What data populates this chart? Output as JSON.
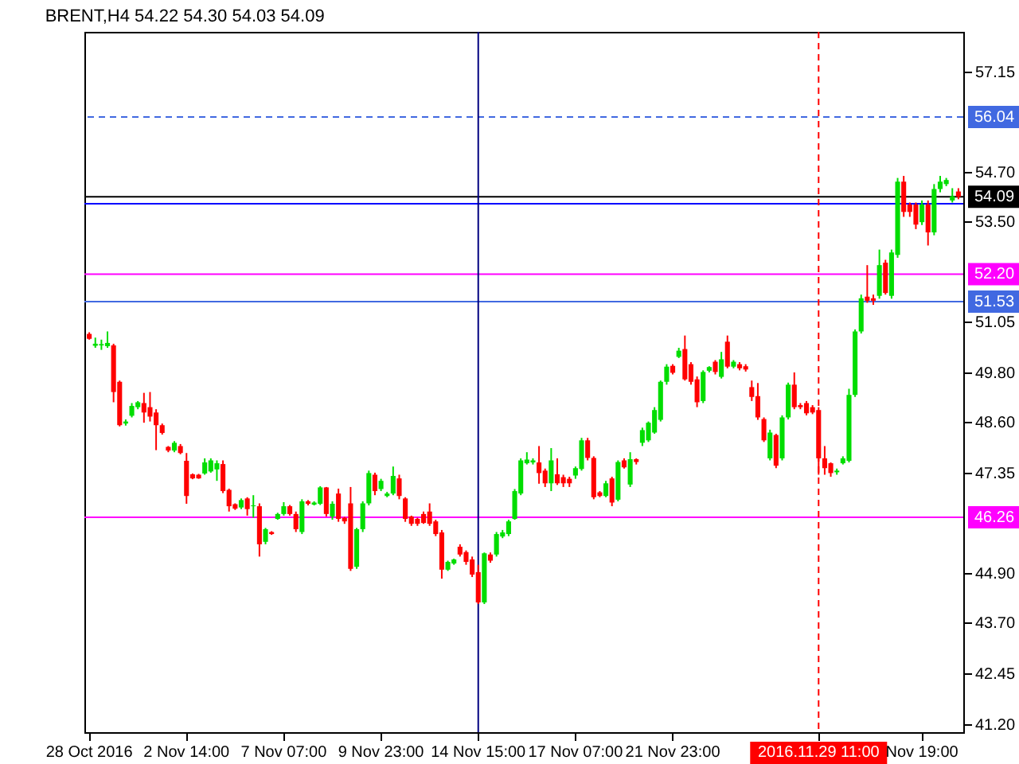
{
  "chart_data": {
    "type": "candlestick",
    "title": "BRENT,H4  54.22 54.30 54.03 54.09",
    "categories": [
      "28 Oct 2016",
      null,
      null,
      null,
      null,
      null,
      null,
      null,
      null,
      null,
      null,
      null,
      null,
      null,
      null,
      null,
      "2 Nov 14:00",
      null,
      null,
      null,
      null,
      null,
      null,
      null,
      null,
      null,
      null,
      null,
      null,
      null,
      null,
      null,
      "7 Nov 07:00",
      null,
      null,
      null,
      null,
      null,
      null,
      null,
      null,
      null,
      null,
      null,
      null,
      null,
      null,
      null,
      "9 Nov 23:00",
      null,
      null,
      null,
      null,
      null,
      null,
      null,
      null,
      null,
      null,
      null,
      null,
      null,
      null,
      null,
      "14 Nov 15:00",
      null,
      null,
      null,
      null,
      null,
      null,
      null,
      null,
      null,
      null,
      null,
      null,
      null,
      null,
      null,
      "17 Nov 07:00",
      null,
      null,
      null,
      null,
      null,
      null,
      null,
      null,
      null,
      null,
      null,
      null,
      null,
      null,
      null,
      "21 Nov 23:00",
      null,
      null,
      null,
      null,
      null,
      null,
      null,
      null,
      null,
      null,
      null,
      null,
      null,
      null,
      null,
      null,
      null,
      null,
      null,
      null,
      null,
      null,
      null,
      "2016.11.29 11:00",
      null,
      null,
      null,
      null,
      null,
      null,
      null,
      null,
      null,
      null,
      null,
      null,
      null,
      null,
      null,
      null,
      "Nov 19:00",
      null,
      null,
      null,
      null,
      null,
      null
    ],
    "ohlc": [
      [
        50.74,
        50.78,
        50.6,
        50.62
      ],
      [
        50.45,
        50.65,
        50.4,
        50.5
      ],
      [
        50.46,
        50.6,
        50.35,
        50.49
      ],
      [
        50.44,
        50.8,
        50.4,
        50.52
      ],
      [
        50.46,
        50.5,
        49.07,
        49.32
      ],
      [
        49.57,
        49.6,
        48.48,
        48.51
      ],
      [
        48.55,
        48.65,
        48.5,
        48.6
      ],
      [
        48.74,
        49.05,
        48.7,
        48.98
      ],
      [
        48.95,
        49.1,
        48.9,
        49.07
      ],
      [
        49.05,
        49.3,
        48.57,
        48.82
      ],
      [
        48.95,
        49.32,
        48.6,
        48.72
      ],
      [
        48.82,
        48.9,
        47.9,
        48.51
      ],
      [
        48.51,
        48.55,
        48.28,
        48.32
      ],
      [
        47.98,
        48.0,
        47.85,
        47.89
      ],
      [
        47.89,
        48.12,
        47.85,
        48.08
      ],
      [
        48.0,
        48.05,
        47.8,
        47.83
      ],
      [
        47.64,
        47.83,
        46.59,
        46.78
      ],
      [
        47.31,
        47.33,
        47.19,
        47.21
      ],
      [
        47.3,
        47.32,
        47.2,
        47.21
      ],
      [
        47.33,
        47.7,
        47.3,
        47.6
      ],
      [
        47.38,
        47.7,
        47.35,
        47.65
      ],
      [
        47.43,
        47.65,
        47.15,
        47.58
      ],
      [
        47.56,
        47.65,
        46.85,
        46.9
      ],
      [
        46.93,
        46.96,
        46.4,
        46.53
      ],
      [
        46.58,
        46.6,
        46.44,
        46.47
      ],
      [
        46.5,
        46.72,
        46.46,
        46.68
      ],
      [
        46.72,
        46.75,
        46.3,
        46.46
      ],
      [
        46.53,
        46.8,
        46.25,
        46.55
      ],
      [
        46.53,
        46.6,
        45.3,
        45.6
      ],
      [
        45.66,
        46.0,
        45.6,
        45.97
      ],
      [
        45.9,
        45.92,
        45.83,
        45.85
      ],
      [
        46.22,
        46.37,
        46.2,
        46.34
      ],
      [
        46.34,
        46.63,
        46.3,
        46.53
      ],
      [
        46.53,
        46.56,
        46.3,
        46.34
      ],
      [
        46.34,
        46.4,
        45.9,
        45.97
      ],
      [
        45.9,
        46.7,
        45.85,
        46.65
      ],
      [
        46.65,
        46.68,
        46.55,
        46.59
      ],
      [
        46.57,
        46.65,
        46.55,
        46.62
      ],
      [
        46.59,
        47.02,
        46.56,
        46.99
      ],
      [
        46.99,
        47.0,
        46.28,
        46.34
      ],
      [
        46.28,
        46.65,
        46.2,
        46.59
      ],
      [
        46.84,
        46.96,
        46.15,
        46.22
      ],
      [
        46.25,
        46.27,
        46.1,
        46.16
      ],
      [
        46.6,
        47.0,
        44.95,
        45.0
      ],
      [
        45.05,
        46.0,
        45.0,
        45.97
      ],
      [
        45.97,
        46.65,
        45.9,
        46.6
      ],
      [
        46.6,
        47.4,
        46.55,
        47.34
      ],
      [
        47.3,
        47.35,
        46.8,
        46.9
      ],
      [
        46.95,
        47.2,
        46.9,
        47.15
      ],
      [
        46.78,
        46.88,
        46.75,
        46.84
      ],
      [
        46.84,
        47.5,
        46.8,
        47.27
      ],
      [
        47.21,
        47.3,
        46.7,
        46.78
      ],
      [
        46.72,
        46.75,
        46.15,
        46.22
      ],
      [
        46.28,
        46.3,
        46.05,
        46.1
      ],
      [
        46.22,
        46.25,
        46.05,
        46.1
      ],
      [
        46.34,
        46.4,
        46.1,
        46.12
      ],
      [
        46.4,
        46.6,
        46.05,
        46.1
      ],
      [
        46.16,
        46.2,
        45.8,
        45.85
      ],
      [
        45.89,
        45.95,
        44.76,
        44.98
      ],
      [
        44.98,
        45.2,
        44.95,
        45.17
      ],
      [
        45.13,
        45.25,
        45.1,
        45.23
      ],
      [
        45.54,
        45.6,
        45.3,
        45.35
      ],
      [
        45.41,
        45.45,
        45.1,
        45.17
      ],
      [
        45.23,
        45.3,
        44.8,
        44.86
      ],
      [
        44.92,
        45.1,
        44.14,
        44.18
      ],
      [
        44.18,
        45.4,
        44.14,
        45.38
      ],
      [
        45.35,
        45.4,
        45.15,
        45.2
      ],
      [
        45.35,
        45.9,
        45.3,
        45.85
      ],
      [
        45.79,
        45.95,
        45.75,
        45.89
      ],
      [
        45.85,
        46.2,
        45.8,
        46.16
      ],
      [
        46.22,
        46.95,
        46.2,
        46.9
      ],
      [
        46.84,
        47.7,
        46.8,
        47.65
      ],
      [
        47.58,
        47.85,
        47.55,
        47.67
      ],
      [
        47.6,
        47.7,
        47.55,
        47.65
      ],
      [
        47.6,
        48.0,
        47.08,
        47.34
      ],
      [
        47.4,
        47.45,
        47.0,
        47.09
      ],
      [
        47.09,
        47.95,
        46.9,
        47.65
      ],
      [
        47.31,
        47.7,
        47.05,
        47.09
      ],
      [
        47.24,
        47.3,
        47.0,
        47.09
      ],
      [
        47.2,
        47.25,
        47.0,
        47.09
      ],
      [
        47.28,
        47.5,
        47.2,
        47.46
      ],
      [
        47.44,
        48.2,
        47.4,
        48.14
      ],
      [
        48.14,
        48.2,
        47.65,
        47.71
      ],
      [
        47.71,
        47.75,
        46.7,
        46.75
      ],
      [
        46.87,
        46.9,
        46.75,
        46.78
      ],
      [
        46.78,
        47.15,
        46.75,
        47.09
      ],
      [
        47.21,
        47.25,
        46.53,
        46.62
      ],
      [
        46.69,
        47.65,
        46.65,
        47.61
      ],
      [
        47.65,
        47.7,
        47.45,
        47.48
      ],
      [
        47.06,
        47.85,
        47.0,
        47.68
      ],
      [
        47.68,
        47.7,
        47.55,
        47.61
      ],
      [
        48.08,
        48.45,
        48.0,
        48.39
      ],
      [
        48.14,
        48.6,
        48.1,
        48.57
      ],
      [
        48.33,
        48.95,
        48.3,
        48.88
      ],
      [
        48.64,
        49.6,
        48.6,
        49.57
      ],
      [
        49.57,
        50.0,
        49.5,
        49.94
      ],
      [
        49.96,
        50.0,
        49.75,
        49.79
      ],
      [
        50.18,
        50.4,
        50.15,
        50.33
      ],
      [
        50.37,
        50.7,
        49.6,
        49.63
      ],
      [
        50.0,
        50.05,
        49.5,
        49.57
      ],
      [
        49.63,
        49.7,
        48.95,
        49.07
      ],
      [
        49.1,
        49.85,
        49.05,
        49.81
      ],
      [
        49.84,
        49.95,
        49.8,
        49.93
      ],
      [
        50.06,
        50.1,
        49.75,
        49.81
      ],
      [
        49.69,
        50.3,
        49.65,
        50.12
      ],
      [
        50.55,
        50.7,
        49.9,
        49.94
      ],
      [
        49.94,
        50.1,
        49.9,
        50.06
      ],
      [
        50.0,
        50.05,
        49.85,
        49.9
      ],
      [
        49.95,
        50.0,
        49.82,
        49.87
      ],
      [
        49.44,
        49.6,
        49.1,
        49.2
      ],
      [
        49.22,
        49.54,
        48.64,
        48.7
      ],
      [
        48.66,
        48.7,
        48.1,
        48.14
      ],
      [
        47.7,
        48.4,
        47.65,
        48.33
      ],
      [
        48.27,
        48.3,
        47.46,
        47.52
      ],
      [
        47.7,
        48.75,
        47.65,
        48.7
      ],
      [
        48.7,
        49.55,
        48.65,
        49.5
      ],
      [
        49.5,
        49.8,
        48.9,
        48.95
      ],
      [
        49.0,
        49.05,
        48.9,
        48.95
      ],
      [
        49.05,
        49.1,
        48.75,
        48.8
      ],
      [
        48.95,
        49.0,
        48.78,
        48.82
      ],
      [
        48.88,
        48.95,
        47.3,
        47.7
      ],
      [
        47.7,
        48.0,
        47.3,
        47.46
      ],
      [
        47.58,
        47.6,
        47.25,
        47.34
      ],
      [
        47.36,
        47.45,
        47.3,
        47.4
      ],
      [
        47.58,
        47.75,
        47.55,
        47.7
      ],
      [
        47.64,
        49.4,
        47.6,
        49.25
      ],
      [
        49.25,
        50.85,
        49.2,
        50.8
      ],
      [
        50.8,
        51.7,
        50.75,
        51.61
      ],
      [
        51.65,
        52.42,
        51.5,
        51.55
      ],
      [
        51.61,
        51.7,
        51.45,
        51.55
      ],
      [
        51.67,
        52.8,
        51.6,
        52.42
      ],
      [
        52.48,
        52.55,
        51.7,
        51.74
      ],
      [
        51.67,
        52.8,
        51.6,
        52.73
      ],
      [
        52.67,
        54.55,
        52.6,
        54.46
      ],
      [
        54.46,
        54.6,
        53.6,
        53.72
      ],
      [
        53.9,
        53.95,
        53.6,
        53.72
      ],
      [
        53.9,
        53.95,
        53.3,
        53.41
      ],
      [
        53.47,
        54.0,
        53.4,
        53.9
      ],
      [
        53.9,
        54.0,
        52.9,
        53.22
      ],
      [
        53.22,
        54.4,
        53.15,
        54.28
      ],
      [
        54.28,
        54.6,
        54.2,
        54.46
      ],
      [
        54.4,
        54.55,
        54.35,
        54.5
      ],
      [
        54.0,
        54.3,
        53.95,
        54.1
      ],
      [
        54.22,
        54.3,
        54.03,
        54.09
      ]
    ],
    "ylim": [
      41.01,
      58.12
    ],
    "yticks": [
      57.15,
      {
        "value": 54.7,
        "label": "54.70"
      },
      {
        "value": 53.5,
        "label": "53.50"
      },
      51.05,
      {
        "value": 49.8,
        "label": "49.80"
      },
      {
        "value": 48.6,
        "label": "48.60"
      },
      47.35,
      {
        "value": 44.9,
        "label": "44.90"
      },
      {
        "value": 43.7,
        "label": "43.70"
      },
      42.45,
      {
        "value": 41.2,
        "label": "41.20"
      }
    ],
    "ref_lines": [
      {
        "axis": "y",
        "value": 56.04,
        "label": "56.04",
        "color": "#4169e1",
        "line_style": "dashed"
      },
      {
        "axis": "y",
        "value": 54.09,
        "label": "54.09",
        "color": "#000000"
      },
      {
        "axis": "y",
        "value": 53.92,
        "color": "#0000ff"
      },
      {
        "axis": "y",
        "value": 52.2,
        "label": "52.20",
        "color": "#ff00ff"
      },
      {
        "axis": "y",
        "value": 51.53,
        "label": "51.53",
        "color": "#4169e1"
      },
      {
        "axis": "y",
        "value": 46.26,
        "label": "46.26",
        "color": "#ff00ff"
      },
      {
        "axis": "x",
        "value": "14 Nov 15:00",
        "color": "#000080"
      },
      {
        "axis": "x",
        "value": "2016.11.29 11:00",
        "color": "#ff0000",
        "line_style": "dashed"
      }
    ],
    "grid": false
  }
}
